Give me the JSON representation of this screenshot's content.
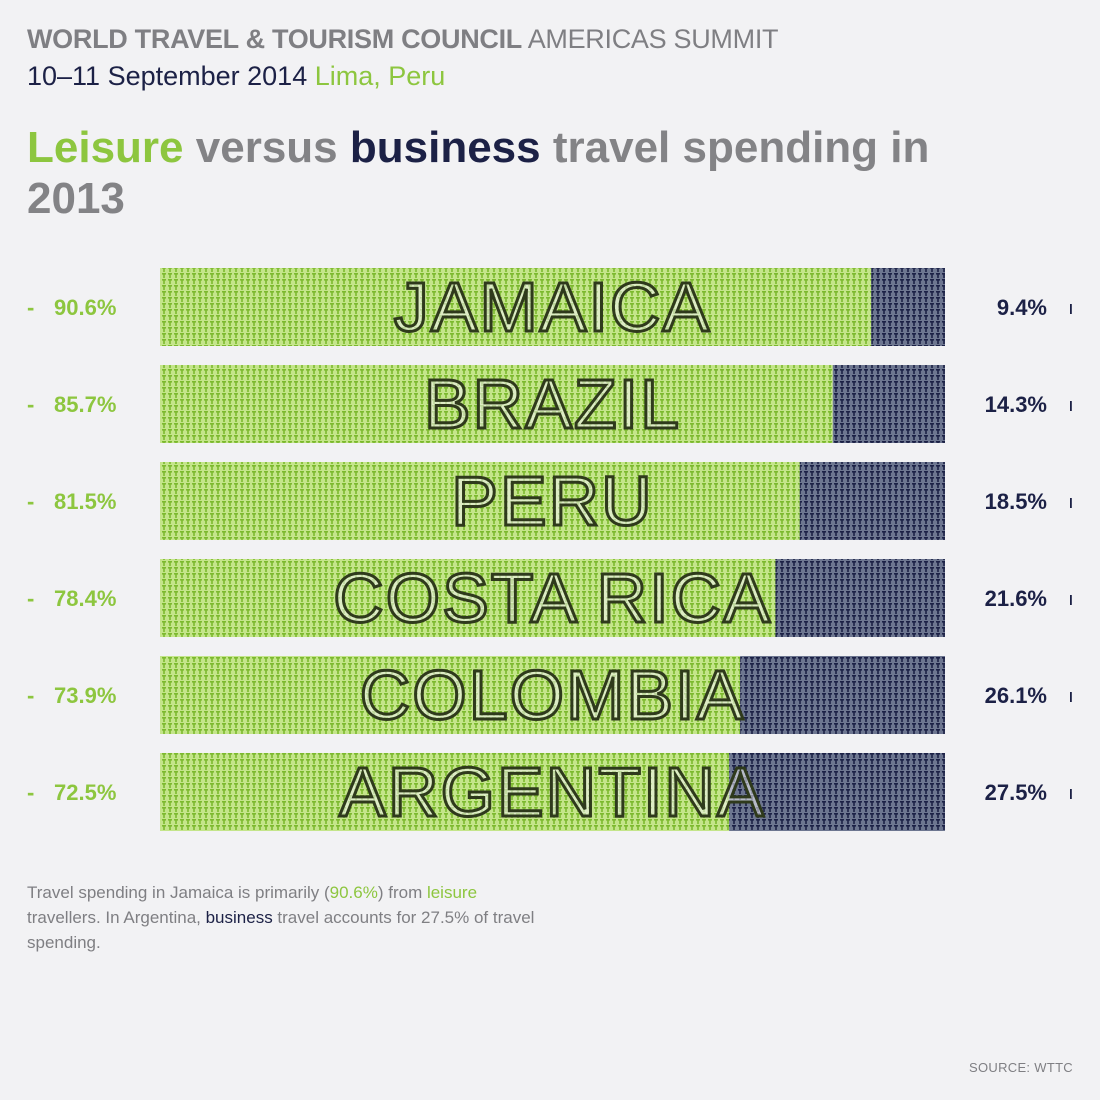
{
  "header": {
    "org": "WORLD TRAVEL & TOURISM COUNCIL",
    "event": "AMERICAS SUMMIT",
    "dates": "10–11 September 2014",
    "location": "Lima, Peru"
  },
  "title": {
    "leisure": "Leisure",
    "versus": "versus",
    "business": "business",
    "rest": "travel spending in 2013"
  },
  "chart_data": {
    "type": "bar",
    "categories": [
      "JAMAICA",
      "BRAZIL",
      "PERU",
      "COSTA RICA",
      "COLOMBIA",
      "ARGENTINA"
    ],
    "series": [
      {
        "name": "Leisure",
        "values": [
          90.6,
          85.7,
          81.5,
          78.4,
          73.9,
          72.5
        ],
        "labels": [
          "90.6%",
          "85.7%",
          "81.5%",
          "78.4%",
          "73.9%",
          "72.5%"
        ],
        "color": "#8dc63f"
      },
      {
        "name": "business",
        "values": [
          9.4,
          14.3,
          18.5,
          21.6,
          26.1,
          27.5
        ],
        "labels": [
          "9.4%",
          "14.3%",
          "18.5%",
          "21.6%",
          "26.1%",
          "27.5%"
        ],
        "color": "#1c2146"
      }
    ],
    "ylim": [
      0,
      100
    ]
  },
  "caption": {
    "p1": "Travel spending in Jamaica is primarily (",
    "v1": "90.6%",
    "p2": ") from ",
    "w1": "leisure",
    "p3": " travellers. In Argentina, ",
    "w2": "business",
    "p4": " travel accounts for 27.5% of travel spending."
  },
  "source": "SOURCE: WTTC",
  "colors": {
    "leisure": "#8dc63f",
    "business": "#1c2146",
    "text_gray": "#838386",
    "background": "#f2f2f4"
  }
}
